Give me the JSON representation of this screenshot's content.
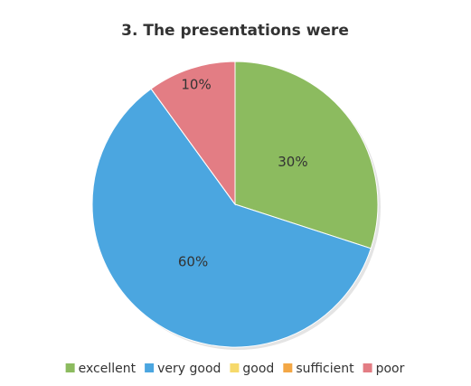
{
  "chart_data": {
    "type": "pie",
    "title": "3. The presentations were",
    "categories": [
      "excellent",
      "very good",
      "good",
      "sufficient",
      "poor"
    ],
    "values": [
      30,
      60,
      0,
      0,
      10
    ],
    "value_labels": [
      "30%",
      "60%",
      null,
      null,
      "10%"
    ],
    "colors": [
      "#8cbb5f",
      "#4ba6e0",
      "#f6d96b",
      "#f3a745",
      "#e37d84"
    ],
    "legend": "bottom"
  }
}
